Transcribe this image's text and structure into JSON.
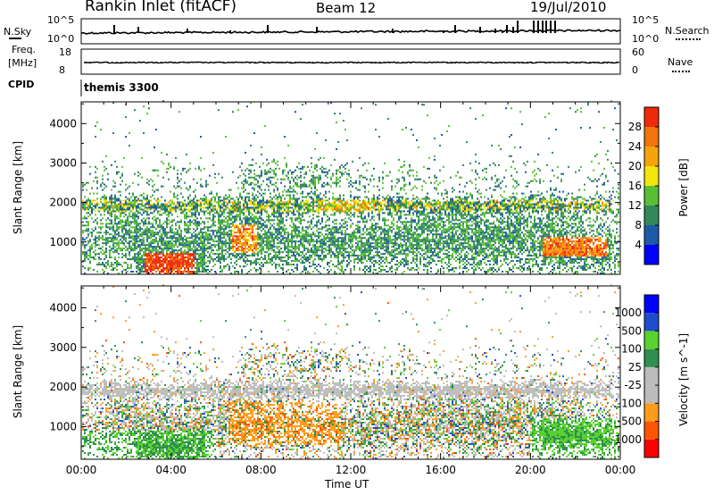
{
  "header": {
    "station": "Rankin Inlet (fitACF)",
    "beam": "Beam 12",
    "date": "19/Jul/2010"
  },
  "noise_panel": {
    "left_label": "N.Sky",
    "right_label": "N.Search",
    "left_ticks": [
      "10^5",
      "10^0"
    ],
    "right_ticks": [
      "10^5",
      "10^0"
    ]
  },
  "freq_panel": {
    "left_label": "Freq.",
    "left_unit": "[MHz]",
    "left_ticks": [
      "18",
      "8"
    ],
    "right_label": "Nave",
    "right_ticks": [
      "60",
      "0"
    ]
  },
  "cpid_panel": {
    "label": "CPID",
    "value": "themis 3300"
  },
  "colors": {
    "power": [
      "#0000ff",
      "#1f5aa8",
      "#33885a",
      "#59c036",
      "#f2e60f",
      "#f5a40a",
      "#f2740a",
      "#ef2a0a"
    ],
    "velocity": [
      "#ff0000",
      "#ff5500",
      "#ff9c1a",
      "#bcbcbc",
      "#bcbcbc",
      "#2f8f4f",
      "#58d22f",
      "#1f4cc8",
      "#0000ff"
    ]
  },
  "chart_data": [
    {
      "type": "heatmap",
      "title": "",
      "xlabel": "",
      "ylabel": "Slant Range [km]",
      "x_ticks": [
        "00:00",
        "04:00",
        "08:00",
        "12:00",
        "16:00",
        "20:00",
        "00:00"
      ],
      "y_ticks": [
        "1000",
        "2000",
        "3000",
        "4000"
      ],
      "ylim": [
        180,
        4550
      ],
      "colorbar": {
        "label": "Power [dB]",
        "ticks": [
          "4",
          "8",
          "12",
          "16",
          "20",
          "24",
          "28"
        ],
        "range": [
          0,
          32
        ]
      }
    },
    {
      "type": "heatmap",
      "title": "",
      "xlabel": "Time UT",
      "ylabel": "Slant Range [km]",
      "x_ticks": [
        "00:00",
        "04:00",
        "08:00",
        "12:00",
        "16:00",
        "20:00",
        "00:00"
      ],
      "y_ticks": [
        "1000",
        "2000",
        "3000",
        "4000"
      ],
      "ylim": [
        180,
        4550
      ],
      "colorbar": {
        "label": "Velocity [m s^-1]",
        "ticks": [
          "1000",
          "500",
          "100",
          "25",
          "-25",
          "-100",
          "-500",
          "-1000"
        ]
      }
    }
  ]
}
